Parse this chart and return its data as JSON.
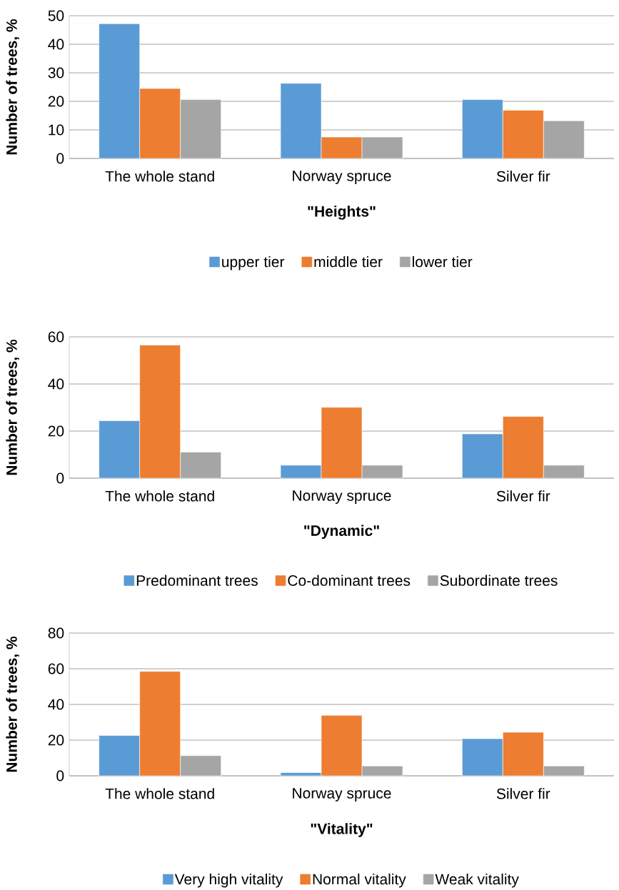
{
  "chart_data": [
    {
      "type": "bar",
      "xlabel": "\"Heights\"",
      "ylabel": "Number of trees, %",
      "categories": [
        "The whole stand",
        "Norway spruce",
        "Silver fir"
      ],
      "ylim": [
        0,
        50
      ],
      "yticks": [
        0,
        10,
        20,
        30,
        40,
        50
      ],
      "grid": "y",
      "legend": "bottom",
      "series": [
        {
          "name": "upper tier",
          "color": "#5b9bd5",
          "values": [
            47.2,
            26.3,
            20.6
          ]
        },
        {
          "name": "middle tier",
          "color": "#ed7d31",
          "values": [
            24.5,
            7.5,
            16.9
          ]
        },
        {
          "name": "lower tier",
          "color": "#a5a5a5",
          "values": [
            20.6,
            7.5,
            13.2
          ]
        }
      ]
    },
    {
      "type": "bar",
      "xlabel": "\"Dynamic\"",
      "ylabel": "Number of trees, %",
      "categories": [
        "The whole stand",
        "Norway spruce",
        "Silver fir"
      ],
      "ylim": [
        0,
        60
      ],
      "yticks": [
        0,
        20,
        40,
        60
      ],
      "grid": "y",
      "legend": "bottom",
      "series": [
        {
          "name": "Predominant trees",
          "color": "#5b9bd5",
          "values": [
            24.4,
            5.5,
            18.8
          ]
        },
        {
          "name": "Co-dominant trees",
          "color": "#ed7d31",
          "values": [
            56.5,
            30.1,
            26.2
          ]
        },
        {
          "name": "Subordinate trees",
          "color": "#a5a5a5",
          "values": [
            11.1,
            5.5,
            5.5
          ]
        }
      ]
    },
    {
      "type": "bar",
      "xlabel": "\"Vitality\"",
      "ylabel": "Number of trees, %",
      "categories": [
        "The whole stand",
        "Norway spruce",
        "Silver fir"
      ],
      "ylim": [
        0,
        80
      ],
      "yticks": [
        0,
        20,
        40,
        60,
        80
      ],
      "grid": "y",
      "legend": "bottom",
      "series": [
        {
          "name": "Very high vitality",
          "color": "#5b9bd5",
          "values": [
            22.6,
            1.8,
            20.8
          ]
        },
        {
          "name": "Normal vitality",
          "color": "#ed7d31",
          "values": [
            58.5,
            33.9,
            24.4
          ]
        },
        {
          "name": "Weak vitality",
          "color": "#a5a5a5",
          "values": [
            11.3,
            5.5,
            5.5
          ]
        }
      ]
    }
  ]
}
